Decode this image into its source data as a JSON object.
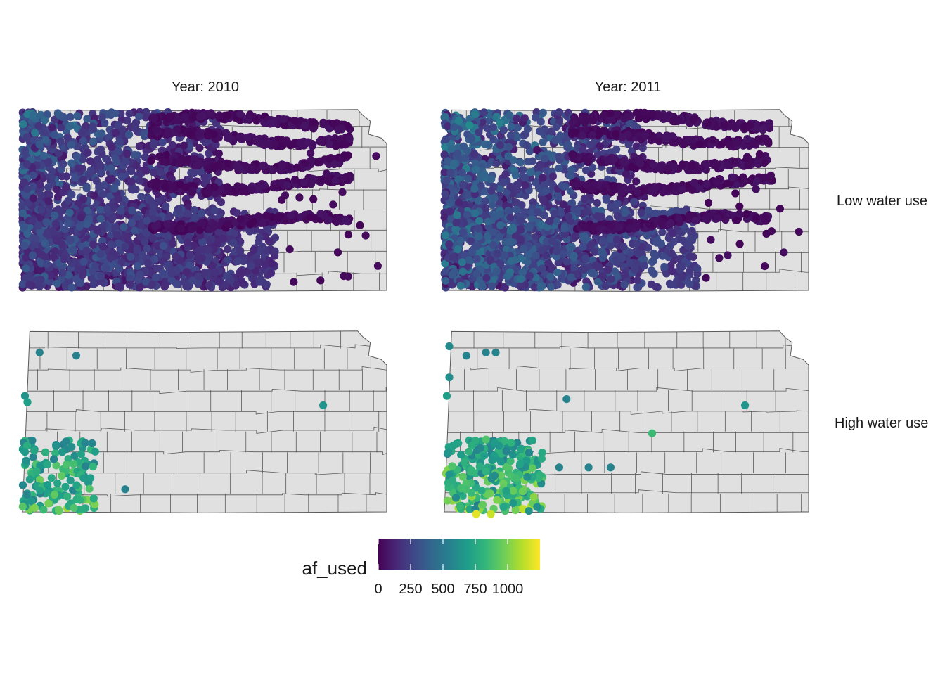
{
  "chart_data": {
    "type": "scatter",
    "subtype": "faceted map of points over state county outlines",
    "facet_columns": [
      {
        "key": "2010",
        "label": "Year:  2010"
      },
      {
        "key": "2011",
        "label": "Year:  2011"
      }
    ],
    "facet_rows": [
      {
        "key": "low",
        "label": "Low water use"
      },
      {
        "key": "high",
        "label": "High water use"
      }
    ],
    "color_scale": {
      "variable": "af_used",
      "palette": "viridis",
      "stops": [
        "#440154",
        "#482878",
        "#3e4989",
        "#31688e",
        "#26828e",
        "#1f9e89",
        "#35b779",
        "#6ece58",
        "#b5de2b",
        "#fde725"
      ],
      "ticks": [
        0,
        250,
        500,
        750,
        1000
      ],
      "tick_labels": [
        "0",
        "250",
        "500",
        "750",
        "1000"
      ],
      "range": [
        0,
        1250
      ]
    },
    "map_fill": "#e0e0e0",
    "map_border": "#595959",
    "point_density": {
      "low_2010": "very dense statewide, concentrated in west and along rivers, mostly 0–300 af",
      "low_2011": "very dense statewide, slightly higher values in southwest",
      "high_2010": "cluster in far southwest (~1000 af max) plus a few scattered points",
      "high_2011": "larger cluster in southwest with values up to ~1200 af, a few scattered points"
    },
    "high_water_use_points": {
      "2010": [
        {
          "lon": -101.7,
          "lat": 39.6,
          "af_used": 560
        },
        {
          "lon": -100.95,
          "lat": 39.55,
          "af_used": 540
        },
        {
          "lon": -102.0,
          "lat": 38.9,
          "af_used": 640
        },
        {
          "lon": -101.95,
          "lat": 38.8,
          "af_used": 700
        },
        {
          "lon": -95.9,
          "lat": 38.75,
          "af_used": 650
        },
        {
          "lon": -102.0,
          "lat": 38.0,
          "af_used": 680
        },
        {
          "lon": -99.95,
          "lat": 37.4,
          "af_used": 560
        },
        {
          "lon": -101.8,
          "lat": 37.1,
          "af_used": 1000
        },
        {
          "lon": -101.3,
          "lat": 37.05,
          "af_used": 950
        },
        {
          "lon": -101.0,
          "lat": 37.1,
          "af_used": 900
        }
      ],
      "2011": [
        {
          "lon": -101.95,
          "lat": 39.7,
          "af_used": 600
        },
        {
          "lon": -101.6,
          "lat": 39.55,
          "af_used": 560
        },
        {
          "lon": -101.95,
          "lat": 39.2,
          "af_used": 620
        },
        {
          "lon": -101.2,
          "lat": 39.6,
          "af_used": 560
        },
        {
          "lon": -101.0,
          "lat": 39.6,
          "af_used": 560
        },
        {
          "lon": -102.0,
          "lat": 38.9,
          "af_used": 700
        },
        {
          "lon": -99.55,
          "lat": 38.85,
          "af_used": 560
        },
        {
          "lon": -95.9,
          "lat": 38.75,
          "af_used": 650
        },
        {
          "lon": -97.8,
          "lat": 38.3,
          "af_used": 850
        },
        {
          "lon": -101.2,
          "lat": 38.2,
          "af_used": 900
        },
        {
          "lon": -99.7,
          "lat": 37.75,
          "af_used": 560
        },
        {
          "lon": -99.1,
          "lat": 37.75,
          "af_used": 560
        },
        {
          "lon": -98.65,
          "lat": 37.75,
          "af_used": 560
        },
        {
          "lon": -101.4,
          "lat": 37.0,
          "af_used": 1200
        },
        {
          "lon": -101.1,
          "lat": 37.0,
          "af_used": 1150
        }
      ]
    }
  }
}
